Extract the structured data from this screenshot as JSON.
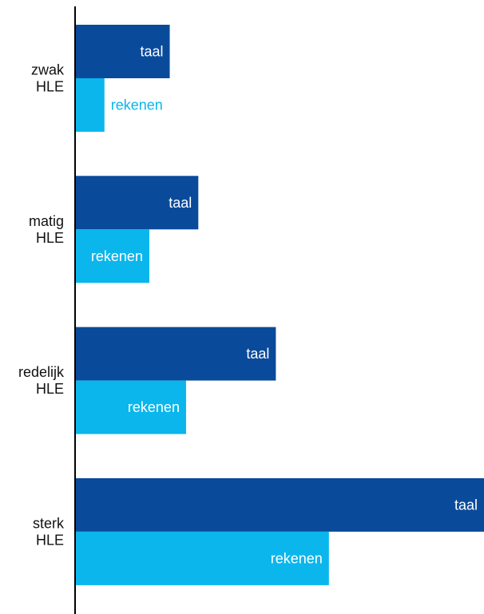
{
  "chart_data": {
    "type": "bar",
    "orientation": "horizontal",
    "categories": [
      "zwak\nHLE",
      "matig\nHLE",
      "redelijk\nHLE",
      "sterk\nHLE"
    ],
    "series": [
      {
        "name": "taal",
        "values": [
          23,
          30,
          49,
          100
        ],
        "color": "#0a4a9a",
        "label_color": "#ffffff"
      },
      {
        "name": "rekenen",
        "values": [
          7,
          18,
          27,
          62
        ],
        "color": "#0ab6ec",
        "label_color": "#ffffff"
      }
    ],
    "xlim": [
      0,
      100
    ],
    "grid": false,
    "legend": "none",
    "title": "",
    "xlabel": "",
    "ylabel": ""
  }
}
